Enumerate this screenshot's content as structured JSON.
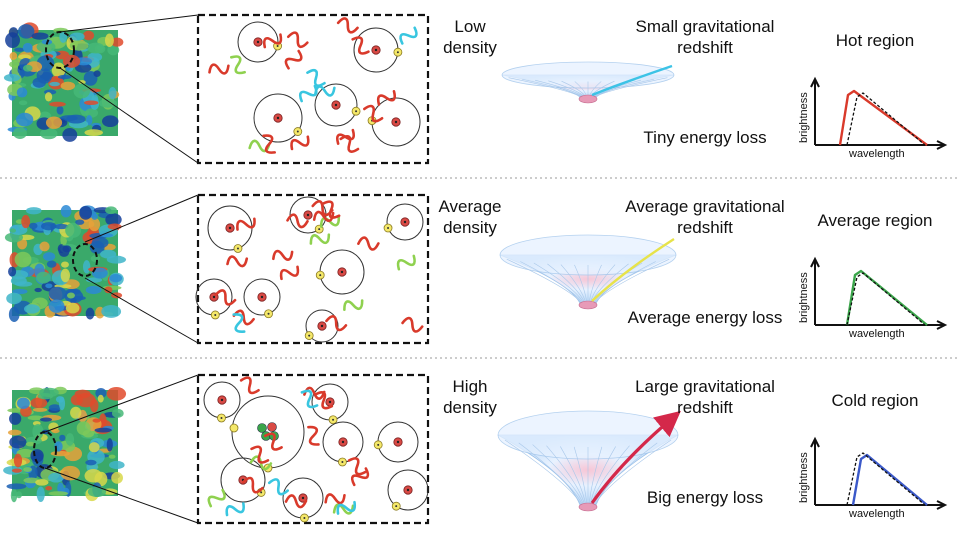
{
  "rows": [
    {
      "density_label": [
        "Low",
        "density"
      ],
      "redshift_label": [
        "Small gravitational",
        "redshift"
      ],
      "energy_label": "Tiny energy loss",
      "region_label": "Hot region",
      "spectrum_color": "#d93a2b",
      "path_color": "#3cc3e6",
      "axis_x": "wavelength",
      "axis_y": "brightness"
    },
    {
      "density_label": [
        "Average",
        "density"
      ],
      "redshift_label": [
        "Average gravitational",
        "redshift"
      ],
      "energy_label": "Average energy loss",
      "region_label": "Average region",
      "spectrum_color": "#3aa54a",
      "path_color": "#e7e34a",
      "axis_x": "wavelength",
      "axis_y": "brightness"
    },
    {
      "density_label": [
        "High",
        "density"
      ],
      "redshift_label": [
        "Large gravitational",
        "redshift"
      ],
      "energy_label": "Big energy loss",
      "region_label": "Cold region",
      "spectrum_color": "#3b59c9",
      "path_color": "#d4284a",
      "axis_x": "wavelength",
      "axis_y": "brightness"
    }
  ],
  "colors": {
    "wave_red": "#d93a2b",
    "wave_green": "#8fd14f",
    "wave_cyan": "#39c6e0",
    "electron_yellow": "#f4e86a",
    "proton_red": "#d94a45",
    "well_blue": "#cfe6ff"
  }
}
